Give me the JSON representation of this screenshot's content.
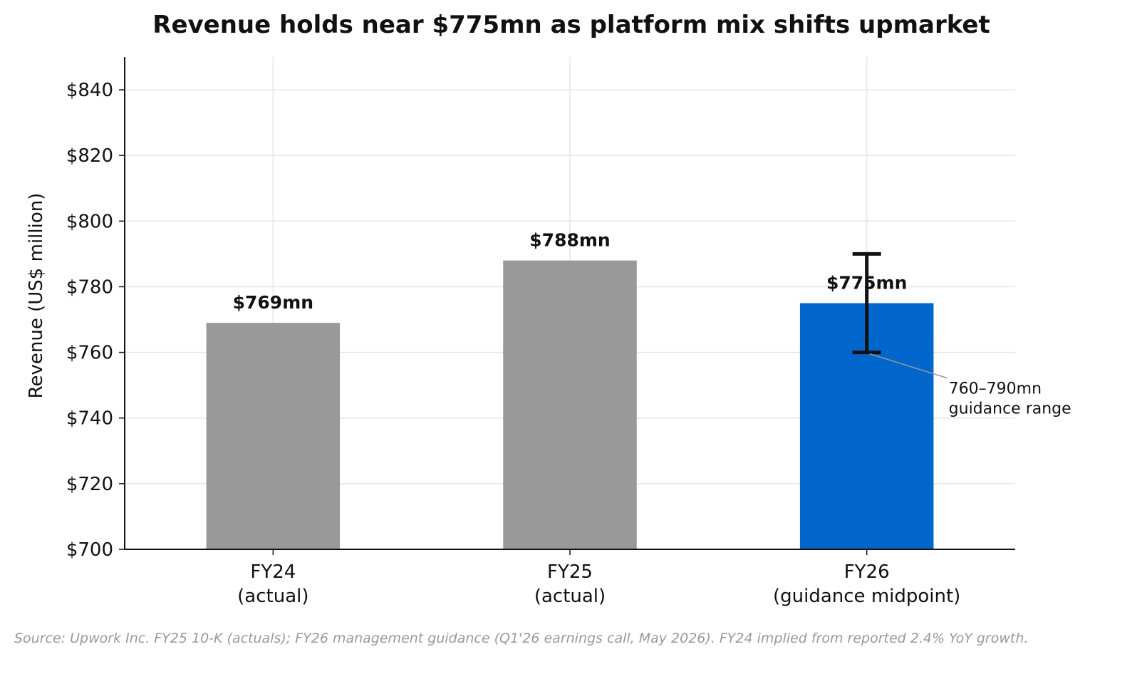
{
  "chart_data": {
    "type": "bar",
    "title": "Revenue holds near $775mn as platform mix shifts upmarket",
    "ylabel": "Revenue (US$ million)",
    "xlabel": "",
    "ylim": [
      700,
      850
    ],
    "yticks": [
      700,
      720,
      740,
      760,
      780,
      800,
      820,
      840
    ],
    "ytick_labels": [
      "$700",
      "$720",
      "$740",
      "$760",
      "$780",
      "$800",
      "$820",
      "$840"
    ],
    "grid": true,
    "categories": [
      [
        "FY24",
        "(actual)"
      ],
      [
        "FY25",
        "(actual)"
      ],
      [
        "FY26",
        "(guidance midpoint)"
      ]
    ],
    "values": [
      769,
      788,
      775
    ],
    "value_labels": [
      "$769mn",
      "$788mn",
      "$775mn"
    ],
    "colors": [
      "#999999",
      "#999999",
      "#0066cc"
    ],
    "error_bar": {
      "category_index": 2,
      "low": 760,
      "high": 790
    },
    "annotation": {
      "lines": [
        "760–790mn",
        "guidance range"
      ]
    },
    "source": "Source: Upwork Inc. FY25 10-K (actuals); FY26 management guidance (Q1'26 earnings call, May 2026). FY24 implied from reported 2.4% YoY growth."
  }
}
